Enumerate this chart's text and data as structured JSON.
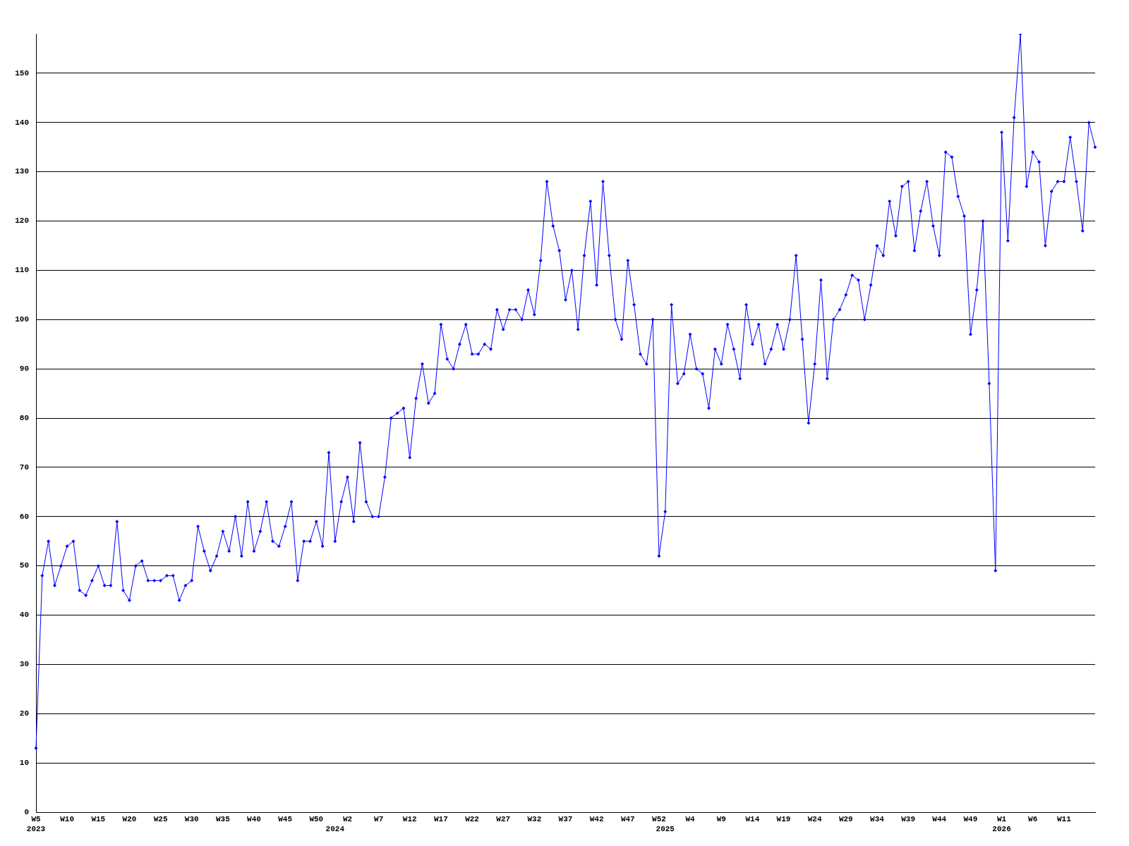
{
  "chart_data": {
    "type": "line",
    "categories": [
      "W5\n2023",
      null,
      null,
      null,
      null,
      "W10",
      null,
      null,
      null,
      null,
      "W15",
      null,
      null,
      null,
      null,
      "W20",
      null,
      null,
      null,
      null,
      "W25",
      null,
      null,
      null,
      null,
      "W30",
      null,
      null,
      null,
      null,
      "W35",
      null,
      null,
      null,
      null,
      "W40",
      null,
      null,
      null,
      null,
      "W45",
      null,
      null,
      null,
      null,
      "W50",
      null,
      null,
      "\n2024",
      null,
      "W2",
      null,
      null,
      null,
      null,
      "W7",
      null,
      null,
      null,
      null,
      "W12",
      null,
      null,
      null,
      null,
      "W17",
      null,
      null,
      null,
      null,
      "W22",
      null,
      null,
      null,
      null,
      "W27",
      null,
      null,
      null,
      null,
      "W32",
      null,
      null,
      null,
      null,
      "W37",
      null,
      null,
      null,
      null,
      "W42",
      null,
      null,
      null,
      null,
      "W47",
      null,
      null,
      null,
      null,
      "W52",
      "\n2025",
      null,
      null,
      null,
      "W4",
      null,
      null,
      null,
      null,
      "W9",
      null,
      null,
      null,
      null,
      "W14",
      null,
      null,
      null,
      null,
      "W19",
      null,
      null,
      null,
      null,
      "W24",
      null,
      null,
      null,
      null,
      "W29",
      null,
      null,
      null,
      null,
      "W34",
      null,
      null,
      null,
      null,
      "W39",
      null,
      null,
      null,
      null,
      "W44",
      null,
      null,
      null,
      null,
      "W49",
      null,
      null,
      null,
      null,
      "W1\n2026",
      null,
      null,
      null,
      null,
      "W6",
      null,
      null,
      null,
      null,
      "W11",
      null,
      null,
      null,
      null,
      null
    ],
    "series": [
      {
        "color": "#0000ff",
        "values": [
          13,
          48,
          55,
          46,
          50,
          54,
          55,
          45,
          44,
          47,
          50,
          46,
          46,
          59,
          45,
          43,
          50,
          51,
          47,
          47,
          47,
          48,
          48,
          43,
          46,
          47,
          58,
          53,
          49,
          52,
          57,
          53,
          60,
          52,
          63,
          53,
          57,
          63,
          55,
          54,
          58,
          63,
          47,
          55,
          55,
          59,
          54,
          73,
          55,
          63,
          68,
          59,
          75,
          63,
          60,
          60,
          68,
          80,
          81,
          82,
          72,
          84,
          91,
          83,
          85,
          99,
          92,
          90,
          95,
          99,
          93,
          93,
          95,
          94,
          102,
          98,
          102,
          102,
          100,
          106,
          101,
          112,
          128,
          119,
          114,
          104,
          110,
          98,
          113,
          124,
          107,
          128,
          113,
          100,
          96,
          112,
          103,
          93,
          91,
          100,
          52,
          61,
          103,
          87,
          89,
          97,
          90,
          89,
          82,
          94,
          91,
          99,
          94,
          88,
          103,
          95,
          99,
          91,
          94,
          99,
          94,
          100,
          113,
          96,
          79,
          91,
          108,
          88,
          100,
          102,
          105,
          109,
          108,
          100,
          107,
          115,
          113,
          124,
          117,
          127,
          128,
          114,
          122,
          128,
          119,
          113,
          134,
          133,
          125,
          121,
          97,
          106,
          120,
          87,
          49,
          138,
          116,
          141,
          158,
          127,
          134,
          132,
          115,
          126,
          128,
          128,
          137,
          128,
          118,
          140,
          135
        ]
      }
    ],
    "ylim": [
      0,
      158
    ],
    "yticks": [
      0,
      10,
      20,
      30,
      40,
      50,
      60,
      70,
      80,
      90,
      100,
      110,
      120,
      130,
      140,
      150
    ],
    "grid": "y",
    "legend": false,
    "marker": "diamond",
    "line_style": "solid"
  }
}
